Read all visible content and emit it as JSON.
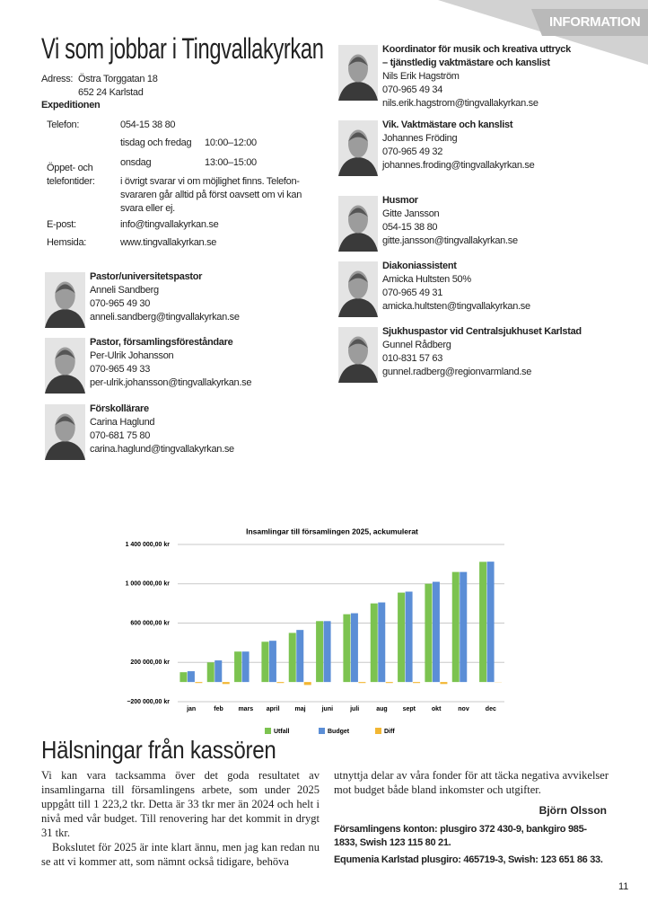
{
  "header": {
    "tab": "INFORMATION"
  },
  "contact": {
    "title": "Vi som jobbar i Tingvallakyrkan",
    "address_label": "Adress:",
    "address": [
      "Östra Torggatan 18",
      "652 24 Karlstad"
    ],
    "office": "Expeditionen",
    "phone_label": "Telefon:",
    "phone": "054-15 38 80",
    "hours_label": "Öppet- och telefontider:",
    "hours": [
      {
        "day": "tisdag och fredag",
        "time": "10:00–12:00"
      },
      {
        "day": "onsdag",
        "time": "13:00–15:00"
      }
    ],
    "hours_note": [
      "i övrigt svarar vi om möjlighet finns. Telefon-",
      "svararen går alltid på först oavsett om vi kan",
      "svara eller ej."
    ],
    "email_label": "E-post:",
    "email": "info@tingvallakyrkan.se",
    "web_label": "Hemsida:",
    "web": "www.tingvallakyrkan.se"
  },
  "staff_left": [
    {
      "role": [
        "Pastor/universitetspastor"
      ],
      "name": "Anneli Sandberg",
      "phone": "070-965 49 30",
      "email": "anneli.sandberg@tingvallakyrkan.se"
    },
    {
      "role": [
        "Pastor, församlingsföreståndare"
      ],
      "name": "Per-Ulrik Johansson",
      "phone": "070-965 49 33",
      "email": "per-ulrik.johansson@tingvallakyrkan.se"
    },
    {
      "role": [
        "Förskollärare"
      ],
      "name": "Carina Haglund",
      "phone": "070-681 75 80",
      "email": "carina.haglund@tingvallakyrkan.se"
    }
  ],
  "staff_right": [
    {
      "role": [
        "Koordinator för musik och kreativa uttryck",
        "– tjänstledig vaktmästare och kanslist"
      ],
      "name": "Nils Erik Hagström",
      "phone": "070-965 49 34",
      "email": "nils.erik.hagstrom@tingvallakyrkan.se"
    },
    {
      "role": [
        "Vik. Vaktmästare och kanslist"
      ],
      "name": "Johannes Fröding",
      "phone": "070-965 49 32",
      "email": "johannes.froding@tingvallakyrkan.se"
    },
    {
      "role": [
        "Husmor"
      ],
      "name": "Gitte Jansson",
      "phone": "054-15 38 80",
      "email": "gitte.jansson@tingvallakyrkan.se"
    },
    {
      "role": [
        "Diakoniassistent"
      ],
      "name": "Amicka Hultsten 50%",
      "phone": "070-965 49 31",
      "email": "amicka.hultsten@tingvallakyrkan.se"
    },
    {
      "role": [
        "Sjukhuspastor vid Centralsjukhuset Karlstad"
      ],
      "name": "Gunnel Rådberg",
      "phone": "010-831 57 63",
      "email": "gunnel.radberg@regionvarmland.se"
    }
  ],
  "chart_data": {
    "type": "bar",
    "title": "Insamlingar till församlingen 2025, ackumulerat",
    "categories": [
      "jan",
      "feb",
      "mars",
      "april",
      "maj",
      "juni",
      "juli",
      "aug",
      "sept",
      "okt",
      "nov",
      "dec"
    ],
    "series": [
      {
        "name": "Utfall",
        "color": "#7cc350",
        "values": [
          100000,
          200000,
          310000,
          410000,
          500000,
          620000,
          690000,
          800000,
          910000,
          1000000,
          1120000,
          1223200
        ]
      },
      {
        "name": "Budget",
        "color": "#5b8ed6",
        "values": [
          110000,
          220000,
          310000,
          420000,
          530000,
          620000,
          700000,
          810000,
          920000,
          1020000,
          1120000,
          1225000
        ]
      },
      {
        "name": "Diff",
        "color": "#f2b632",
        "values": [
          -10000,
          -20000,
          0,
          -10000,
          -30000,
          0,
          -10000,
          -10000,
          -10000,
          -20000,
          0,
          -1800
        ]
      }
    ],
    "ylim": [
      -200000,
      1400000
    ],
    "yticks": [
      {
        "value": -200000,
        "label": "−200 000,00 kr"
      },
      {
        "value": 200000,
        "label": "200 000,00 kr"
      },
      {
        "value": 600000,
        "label": "600 000,00 kr"
      },
      {
        "value": 1000000,
        "label": "1 000 000,00 kr"
      },
      {
        "value": 1400000,
        "label": "1 400 000,00 kr"
      }
    ],
    "grid": true,
    "legend": "bottom"
  },
  "article": {
    "title": "Hälsningar från kassören",
    "column_left": [
      "Vi kan vara tacksamma över det goda resultatet av insamlingarna till församlingens arbete, som under 2025 uppgått till 1 223,2 tkr. Detta är 33 tkr mer än 2024 och helt i nivå med vår budget. Till renovering har det kommit in drygt 31 tkr.",
      "Bokslutet för 2025 är inte klart ännu, men jag kan redan nu se att vi kommer att, som nämnt också tidigare, behöva"
    ],
    "column_right": [
      "utnyttja delar av våra fonder för att täcka negativa avvikelser mot budget både bland inkomster och utgifter."
    ],
    "signature": "Björn Olsson",
    "accounts": [
      "Församlingens konton: plusgiro 372 430-9, bankgiro 985-1833, Swish 123 115 80 21.",
      "Equmenia Karlstad plusgiro: 465719-3, Swish: 123 651 86 33."
    ]
  },
  "page_number": "11"
}
